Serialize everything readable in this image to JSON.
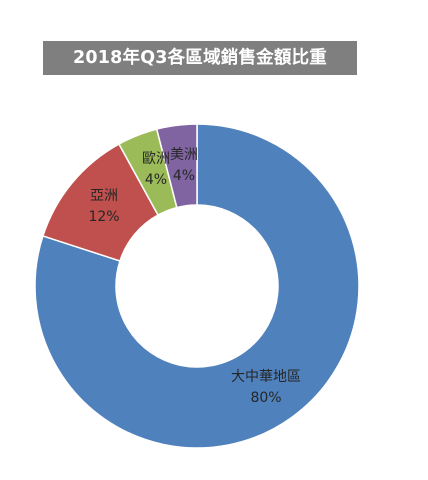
{
  "chart_data": {
    "type": "pie",
    "donut": true,
    "title": "2018年Q3各區域銷售金額比重",
    "categories": [
      "大中華地區",
      "亞洲",
      "歐洲",
      "美洲"
    ],
    "values": [
      80,
      12,
      4,
      4
    ],
    "value_labels": [
      "80%",
      "12%",
      "4%",
      "4%"
    ],
    "unit": "%",
    "colors": [
      "#4f81bd",
      "#c0504d",
      "#9bbb59",
      "#8064a2"
    ],
    "legend": "none",
    "start_angle": "12 o'clock",
    "direction": "clockwise"
  }
}
